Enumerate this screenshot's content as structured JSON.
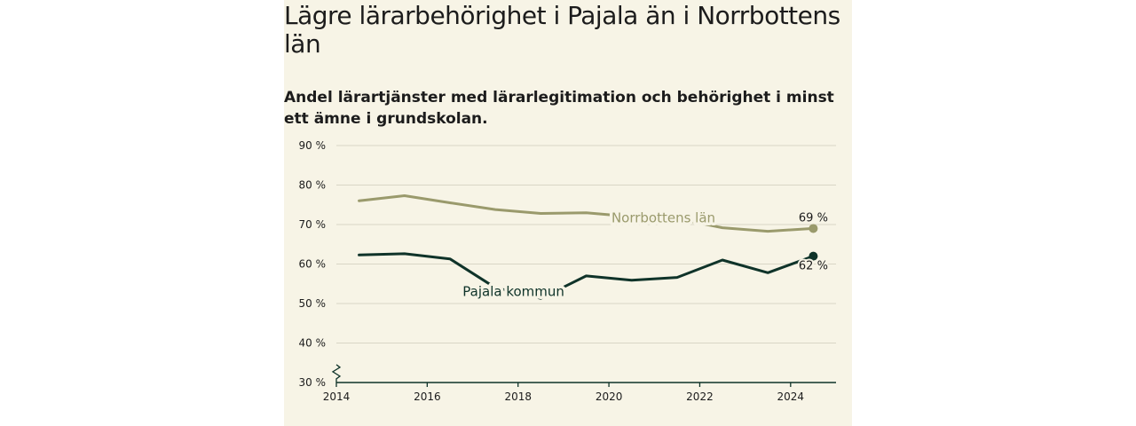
{
  "title": "Lägre lärarbehörighet i Pajala än i Norrbottens län",
  "subtitle": "Andel lärartjänster med lärarlegitimation och behörighet i minst ett ämne i grundskolan.",
  "colors": {
    "background": "#f7f4e6",
    "norrbotten": "#9a9a6c",
    "pajala": "#0f3329",
    "gridline": "#d9d6c6",
    "axis": "#0f3329"
  },
  "chart_data": {
    "type": "line",
    "title": "Lägre lärarbehörighet i Pajala än i Norrbottens län",
    "subtitle": "Andel lärartjänster med lärarlegitimation och behörighet i minst ett ämne i grundskolan.",
    "xlabel": "",
    "ylabel": "",
    "xlim": [
      2014,
      2025
    ],
    "ylim": [
      30,
      90
    ],
    "y_axis_break": true,
    "grid": true,
    "x_ticks": [
      2014,
      2016,
      2018,
      2020,
      2022,
      2024
    ],
    "x_tick_labels": [
      "2014",
      "2016",
      "2018",
      "2020",
      "2022",
      "2024"
    ],
    "y_ticks": [
      30,
      40,
      50,
      60,
      70,
      80,
      90
    ],
    "y_tick_labels": [
      "30 %",
      "40 %",
      "50 %",
      "60 %",
      "70 %",
      "80 %",
      "90 %"
    ],
    "x": [
      2014.5,
      2015.5,
      2016.5,
      2017.5,
      2018.5,
      2019.5,
      2020.5,
      2021.5,
      2022.5,
      2023.5,
      2024.5
    ],
    "series": [
      {
        "name": "Norrbottens län",
        "color": "#9a9a6c",
        "values": [
          76,
          77.3,
          75.5,
          73.8,
          72.8,
          73,
          72,
          71.5,
          69.2,
          68.3,
          69
        ],
        "end_label": "69 %"
      },
      {
        "name": "Pajala kommun",
        "color": "#0f3329",
        "values": [
          62.3,
          62.6,
          61.3,
          54,
          51.3,
          57,
          55.9,
          56.6,
          61,
          57.8,
          62
        ],
        "end_label": "62 %"
      }
    ]
  }
}
